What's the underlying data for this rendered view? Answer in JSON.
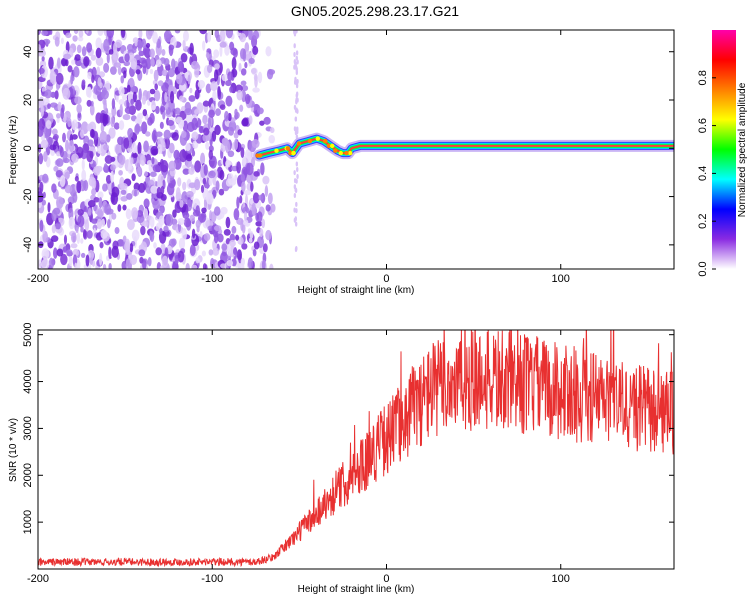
{
  "title": "GN05.2025.298.23.17.G21",
  "chart_data": [
    {
      "type": "heatmap",
      "xlabel": "Height of straight line (km)",
      "ylabel": "Frequency (Hz)",
      "xlim": [
        -200,
        165
      ],
      "ylim": [
        -50,
        49
      ],
      "xticks": [
        -200,
        -100,
        0,
        100
      ],
      "yticks": [
        -40,
        -20,
        0,
        20,
        40
      ],
      "noise_region_x": [
        -200,
        -73
      ],
      "signal_track": [
        {
          "x": -73,
          "y": -3
        },
        {
          "x": -68,
          "y": -2
        },
        {
          "x": -62,
          "y": -1
        },
        {
          "x": -57,
          "y": 0
        },
        {
          "x": -54,
          "y": -2
        },
        {
          "x": -50,
          "y": 2
        },
        {
          "x": -45,
          "y": 3
        },
        {
          "x": -40,
          "y": 4
        },
        {
          "x": -36,
          "y": 3
        },
        {
          "x": -32,
          "y": 1
        },
        {
          "x": -28,
          "y": -1
        },
        {
          "x": -25,
          "y": -2
        },
        {
          "x": -22,
          "y": -2
        },
        {
          "x": -20,
          "y": 0
        },
        {
          "x": -15,
          "y": 1
        },
        {
          "x": 0,
          "y": 1
        },
        {
          "x": 50,
          "y": 1
        },
        {
          "x": 100,
          "y": 1
        },
        {
          "x": 165,
          "y": 1
        }
      ],
      "colorbar": {
        "label": "Normalized spectral amplitude",
        "ticks": [
          "0.0",
          "0.2",
          "0.4",
          "0.6",
          "0.8"
        ],
        "tick_values": [
          0.0,
          0.2,
          0.4,
          0.6,
          0.8
        ],
        "range": [
          0,
          1
        ],
        "colors": [
          "#ffffff",
          "#8a2be2",
          "#0000ff",
          "#00ffff",
          "#00ff00",
          "#ffff00",
          "#ff7f00",
          "#ff0000",
          "#ff00aa"
        ]
      }
    },
    {
      "type": "line",
      "xlabel": "Height of straight line (km)",
      "ylabel": "SNR (10 * v/v)",
      "xlim": [
        -200,
        165
      ],
      "ylim": [
        0,
        5100
      ],
      "xticks": [
        -200,
        -100,
        0,
        100
      ],
      "yticks": [
        1000,
        2000,
        3000,
        4000,
        5000
      ],
      "color": "#e83030",
      "envelope": [
        {
          "x": -200,
          "y": 150
        },
        {
          "x": -150,
          "y": 150
        },
        {
          "x": -100,
          "y": 150
        },
        {
          "x": -75,
          "y": 150
        },
        {
          "x": -65,
          "y": 250
        },
        {
          "x": -55,
          "y": 600
        },
        {
          "x": -45,
          "y": 1000
        },
        {
          "x": -35,
          "y": 1400
        },
        {
          "x": -25,
          "y": 1800
        },
        {
          "x": -15,
          "y": 2200
        },
        {
          "x": -5,
          "y": 2600
        },
        {
          "x": 5,
          "y": 3000
        },
        {
          "x": 15,
          "y": 3400
        },
        {
          "x": 25,
          "y": 3800
        },
        {
          "x": 40,
          "y": 4000
        },
        {
          "x": 60,
          "y": 4050
        },
        {
          "x": 80,
          "y": 3950
        },
        {
          "x": 100,
          "y": 3800
        },
        {
          "x": 120,
          "y": 3650
        },
        {
          "x": 140,
          "y": 3450
        },
        {
          "x": 165,
          "y": 3300
        }
      ]
    }
  ]
}
